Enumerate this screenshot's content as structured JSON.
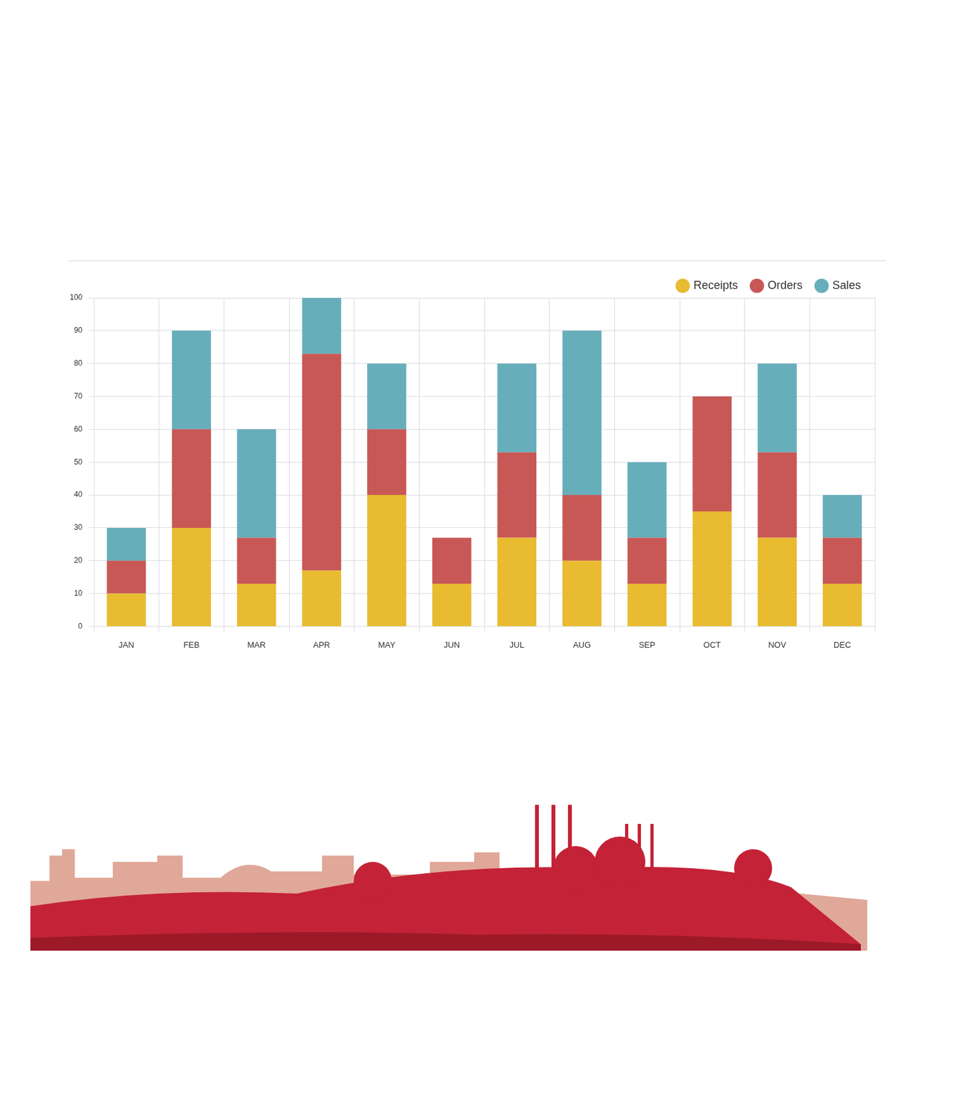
{
  "chart_data": {
    "type": "bar",
    "stacked": true,
    "grid": true,
    "legend": "top-right",
    "categories": [
      "JAN",
      "FEB",
      "MAR",
      "APR",
      "MAY",
      "JUN",
      "JUL",
      "AUG",
      "SEP",
      "OCT",
      "NOV",
      "DEC"
    ],
    "series": [
      {
        "name": "Receipts",
        "color": "#e8bb30",
        "values": [
          10,
          30,
          13,
          17,
          40,
          13,
          27,
          20,
          13,
          35,
          27,
          13
        ]
      },
      {
        "name": "Orders",
        "color": "#c85856",
        "values": [
          10,
          30,
          14,
          66,
          20,
          14,
          26,
          20,
          14,
          35,
          26,
          14
        ]
      },
      {
        "name": "Sales",
        "color": "#67aebb",
        "values": [
          10,
          30,
          33,
          17,
          20,
          0,
          27,
          50,
          23,
          0,
          27,
          13
        ]
      }
    ],
    "ylim": [
      0,
      100
    ],
    "yticks": [
      0,
      10,
      20,
      30,
      40,
      50,
      60,
      70,
      80,
      90,
      100
    ]
  }
}
